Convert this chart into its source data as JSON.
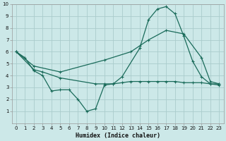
{
  "xlabel": "Humidex (Indice chaleur)",
  "bg_color": "#cce8e8",
  "grid_color": "#aacccc",
  "line_color": "#1a6b5a",
  "xlim": [
    -0.5,
    23.5
  ],
  "ylim": [
    0,
    10
  ],
  "xticks": [
    0,
    1,
    2,
    3,
    4,
    5,
    6,
    7,
    8,
    9,
    10,
    11,
    12,
    13,
    14,
    15,
    16,
    17,
    18,
    19,
    20,
    21,
    22,
    23
  ],
  "yticks": [
    1,
    2,
    3,
    4,
    5,
    6,
    7,
    8,
    9,
    10
  ],
  "line1_x": [
    0,
    1,
    2,
    3,
    4,
    5,
    6,
    7,
    8,
    9,
    10,
    11,
    12,
    14,
    15,
    16,
    17,
    18,
    19,
    20,
    21,
    22,
    23
  ],
  "line1_y": [
    6.0,
    5.5,
    4.4,
    4.0,
    2.7,
    2.8,
    2.8,
    2.0,
    1.0,
    1.2,
    3.2,
    3.3,
    3.9,
    6.3,
    8.7,
    9.6,
    9.8,
    9.2,
    7.3,
    5.2,
    3.9,
    3.3,
    3.2
  ],
  "line2_x": [
    0,
    2,
    5,
    10,
    13,
    14,
    15,
    17,
    19,
    21,
    22,
    23
  ],
  "line2_y": [
    6.0,
    4.8,
    4.3,
    5.3,
    6.0,
    6.5,
    7.0,
    7.8,
    7.5,
    5.5,
    3.5,
    3.3
  ],
  "line3_x": [
    0,
    2,
    3,
    5,
    9,
    10,
    11,
    12,
    13,
    14,
    15,
    16,
    17,
    18,
    19,
    20,
    21,
    22,
    23
  ],
  "line3_y": [
    6.0,
    4.5,
    4.3,
    3.8,
    3.3,
    3.3,
    3.3,
    3.4,
    3.5,
    3.5,
    3.5,
    3.5,
    3.5,
    3.5,
    3.4,
    3.4,
    3.4,
    3.3,
    3.3
  ]
}
